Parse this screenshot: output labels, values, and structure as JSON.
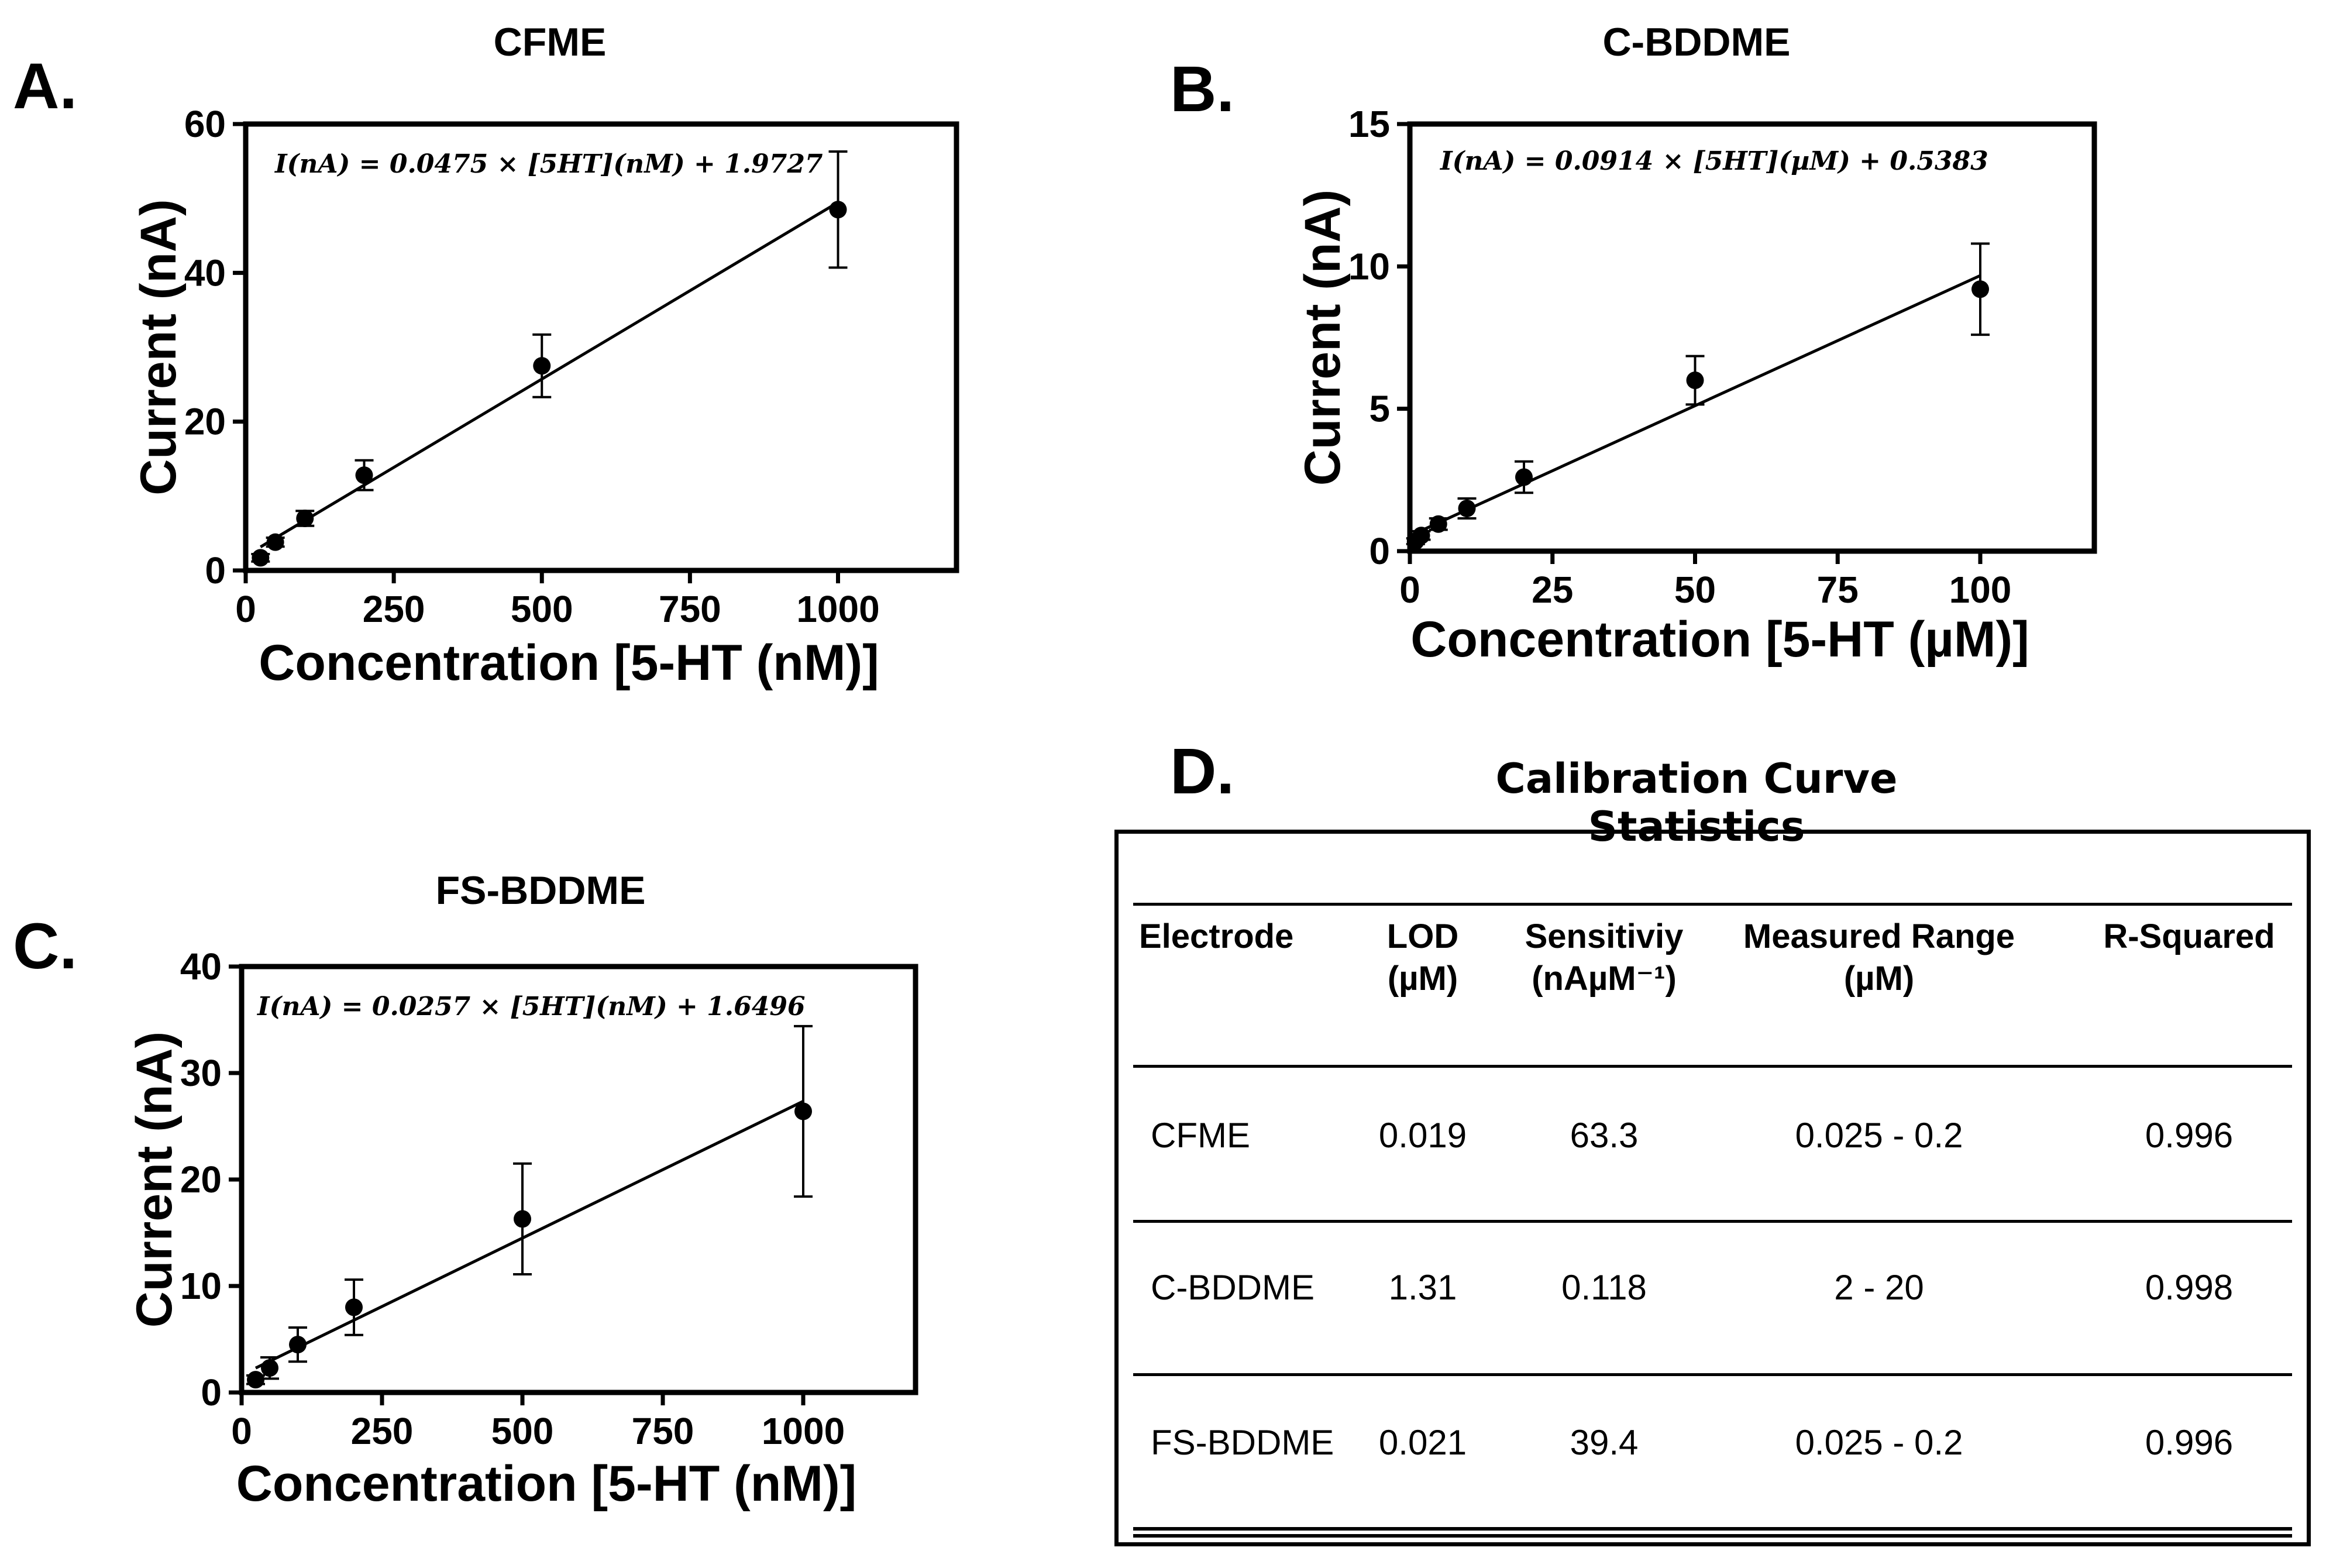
{
  "panels": {
    "A": {
      "letter": "A.",
      "chart_data": {
        "type": "scatter",
        "title": "CFME",
        "xlabel": "Concentration [5-HT  (nM)]",
        "ylabel": "Current (nA)",
        "xlim": [
          0,
          1200
        ],
        "ylim": [
          0,
          60
        ],
        "xticks": [
          0,
          250,
          500,
          750,
          1000
        ],
        "yticks": [
          0,
          20,
          40,
          60
        ],
        "x": [
          25,
          50,
          100,
          200,
          500,
          1000
        ],
        "y": [
          1.7,
          3.8,
          7.0,
          12.8,
          27.5,
          48.5
        ],
        "yerr": [
          0.5,
          0.6,
          1.0,
          2.0,
          4.2,
          7.8
        ],
        "fit": {
          "slope": 0.0475,
          "intercept": 1.9727,
          "x_range": [
            25,
            1000
          ]
        },
        "equation": "I(nA) = 0.0475 × [5HT](nM) + 1.9727"
      }
    },
    "B": {
      "letter": "B.",
      "chart_data": {
        "type": "scatter",
        "title": "C-BDDME",
        "xlabel": "Concentration [5-HT  (µM)]",
        "ylabel": "Current (nA)",
        "xlim": [
          0,
          120
        ],
        "ylim": [
          0,
          15
        ],
        "xticks": [
          0,
          25,
          50,
          75,
          100
        ],
        "yticks": [
          0,
          5,
          10,
          15
        ],
        "x": [
          1,
          2,
          5,
          10,
          20,
          50,
          100
        ],
        "y": [
          0.35,
          0.55,
          0.95,
          1.5,
          2.6,
          6.0,
          9.2
        ],
        "yerr": [
          0.1,
          0.15,
          0.2,
          0.35,
          0.55,
          0.85,
          1.6
        ],
        "fit": {
          "slope": 0.0914,
          "intercept": 0.5383,
          "x_range": [
            0,
            100
          ]
        },
        "equation": "I(nA) = 0.0914 × [5HT](µM) + 0.5383"
      }
    },
    "C": {
      "letter": "C.",
      "chart_data": {
        "type": "scatter",
        "title": "FS-BDDME",
        "xlabel": "Concentration [5-HT  (nM)]",
        "ylabel": "Current (nA)",
        "xlim": [
          0,
          1200
        ],
        "ylim": [
          0,
          40
        ],
        "xticks": [
          0,
          250,
          500,
          750,
          1000
        ],
        "yticks": [
          0,
          10,
          20,
          30,
          40
        ],
        "x": [
          25,
          50,
          100,
          200,
          500,
          1000
        ],
        "y": [
          1.2,
          2.3,
          4.5,
          8.0,
          16.3,
          26.4
        ],
        "yerr": [
          0.4,
          1.0,
          1.6,
          2.6,
          5.2,
          8.0
        ],
        "fit": {
          "slope": 0.0257,
          "intercept": 1.6496,
          "x_range": [
            25,
            1000
          ]
        },
        "equation": "I(nA) = 0.0257 × [5HT](nM) + 1.6496"
      }
    }
  },
  "table": {
    "letter": "D.",
    "title": "Calibration Curve Statistics",
    "headers": [
      {
        "line1": "Electrode",
        "line2": ""
      },
      {
        "line1": "LOD",
        "line2": "(µM)"
      },
      {
        "line1": "Sensitiviy",
        "line2": "(nAµM⁻¹)"
      },
      {
        "line1": "Measured Range",
        "line2": "(µM)"
      },
      {
        "line1": "R-Squared",
        "line2": ""
      }
    ],
    "rows": [
      [
        "CFME",
        "0.019",
        "63.3",
        "0.025 - 0.2",
        "0.996"
      ],
      [
        "C-BDDME",
        "1.31",
        "0.118",
        "2 - 20",
        "0.998"
      ],
      [
        "FS-BDDME",
        "0.021",
        "39.4",
        "0.025 - 0.2",
        "0.996"
      ]
    ]
  }
}
